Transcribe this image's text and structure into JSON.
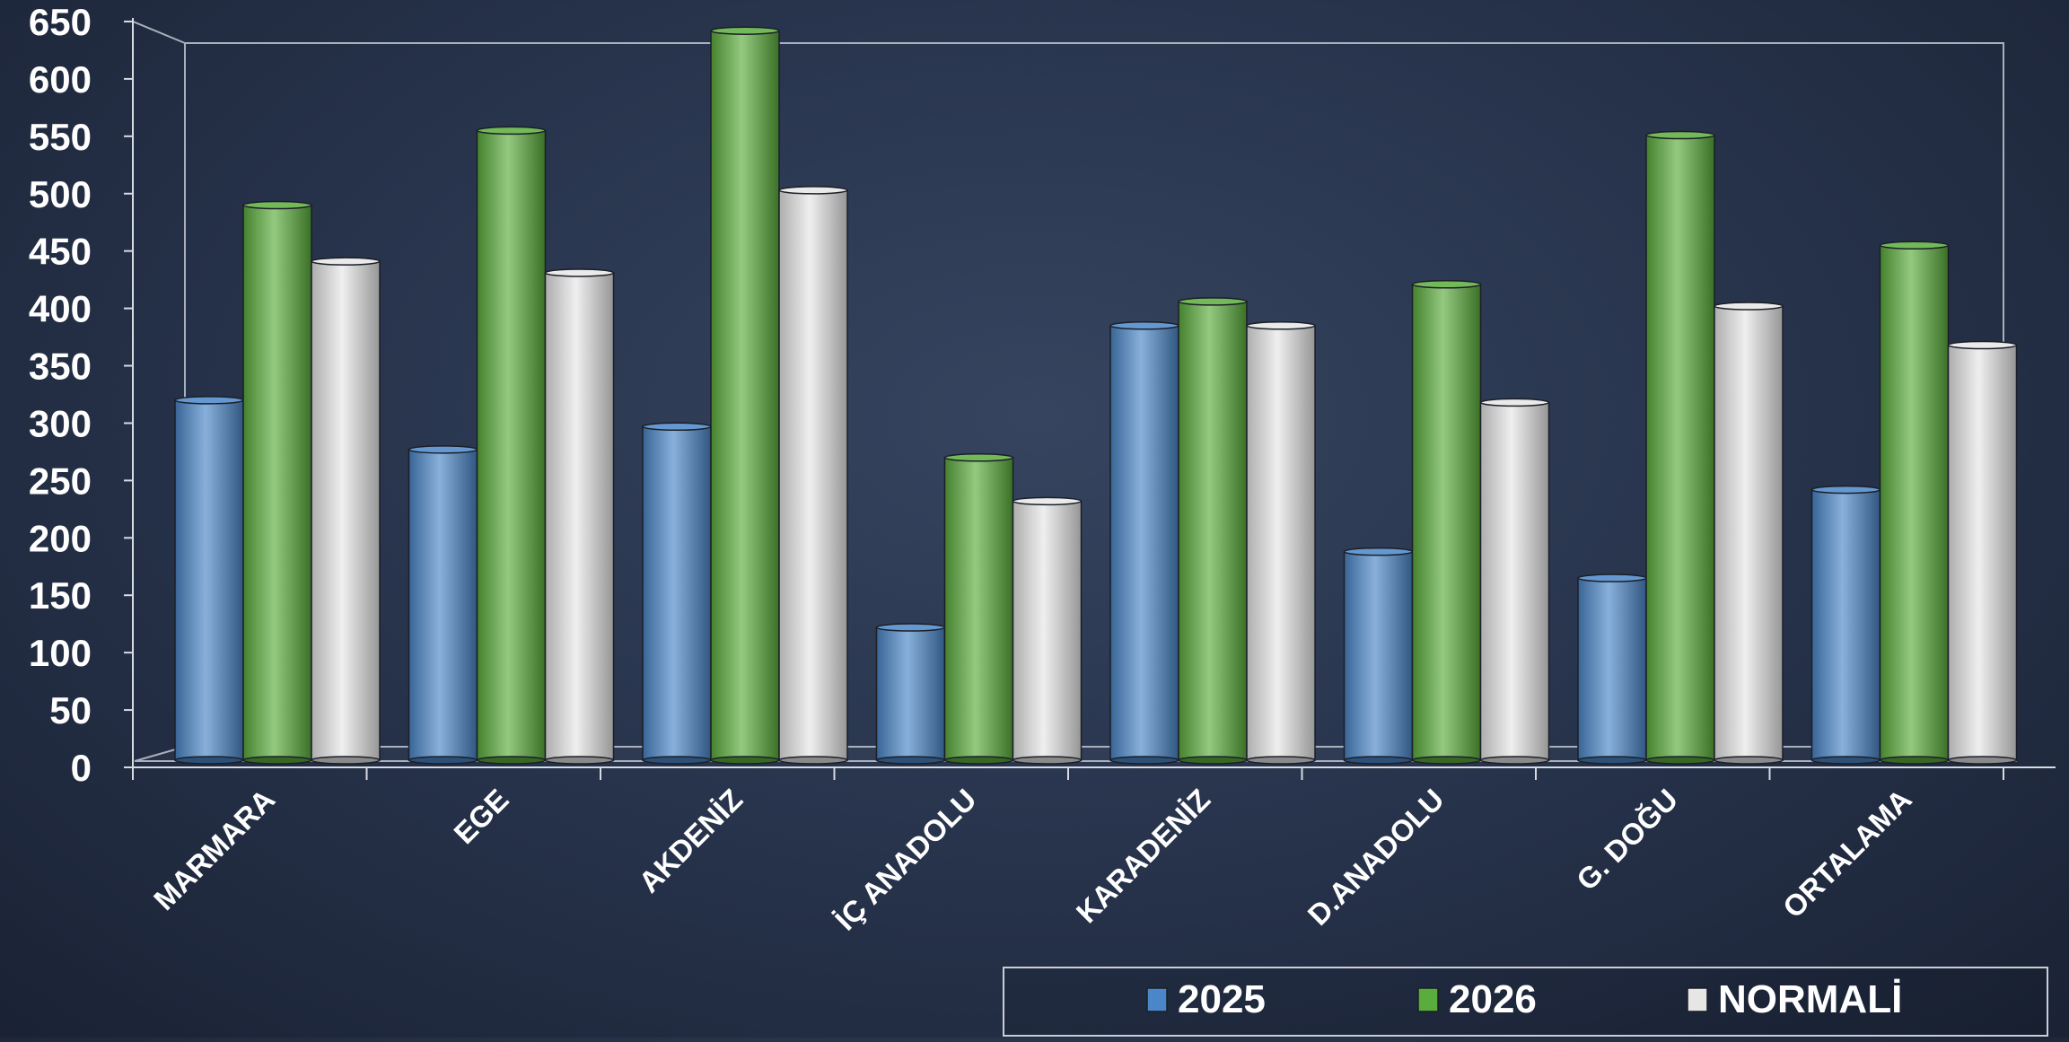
{
  "chart_data": {
    "type": "bar",
    "title": "",
    "xlabel": "",
    "ylabel": "",
    "ylim": [
      0,
      650
    ],
    "yticks": [
      0,
      50,
      100,
      150,
      200,
      250,
      300,
      350,
      400,
      450,
      500,
      550,
      600,
      650
    ],
    "grid": false,
    "legend_position": "bottom-right",
    "categories": [
      "MARMARA",
      "EGE",
      "AKDENİZ",
      "İÇ ANADOLU",
      "KARADENİZ",
      "D.ANADOLU",
      "G. DOĞU",
      "ORTALAMA"
    ],
    "series": [
      {
        "name": "2025",
        "color": "#4a86c8",
        "values": [
          320,
          277,
          297,
          122,
          385,
          188,
          165,
          242
        ]
      },
      {
        "name": "2026",
        "color": "#5aac3c",
        "values": [
          490,
          555,
          642,
          270,
          406,
          421,
          551,
          455
        ]
      },
      {
        "name": "NORMALİ",
        "color": "#e6e6e6",
        "values": [
          441,
          431,
          503,
          232,
          385,
          318,
          402,
          368
        ]
      }
    ]
  }
}
